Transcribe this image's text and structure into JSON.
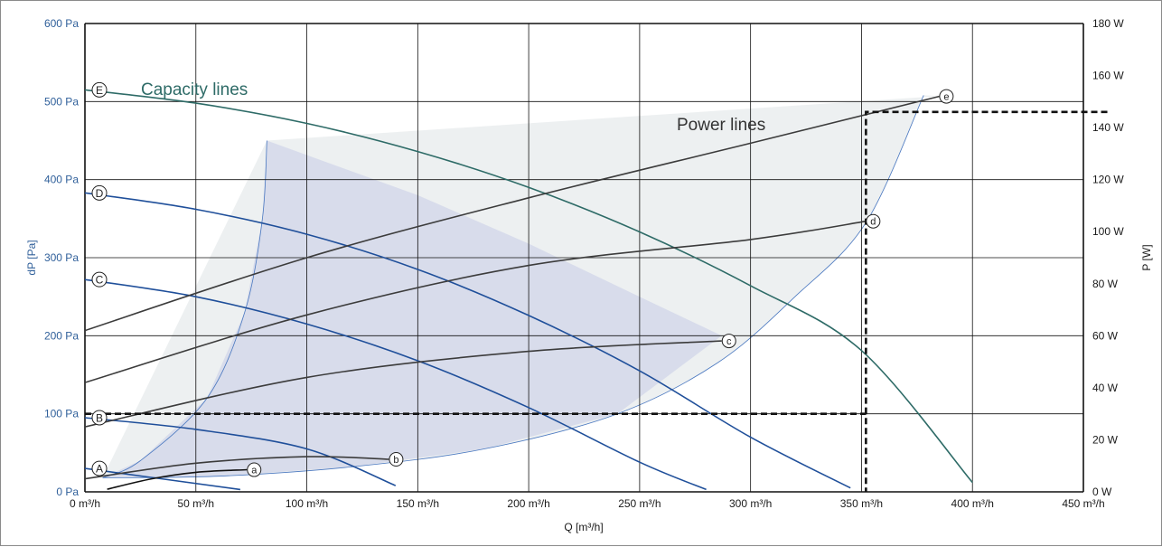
{
  "chart_data": {
    "type": "line",
    "title": "",
    "xlabel": "Q [m³/h]",
    "ylabel_left": "dP [Pa]",
    "ylabel_right": "P [W]",
    "xlim": [
      0,
      450
    ],
    "ylim_left": [
      0,
      600
    ],
    "ylim_right": [
      0,
      180
    ],
    "grid": true,
    "x_ticks": [
      "0 m³/h",
      "50 m³/h",
      "100 m³/h",
      "150 m³/h",
      "200 m³/h",
      "250 m³/h",
      "300 m³/h",
      "350 m³/h",
      "400 m³/h",
      "450 m³/h"
    ],
    "y_left_ticks": [
      "0 Pa",
      "100 Pa",
      "200 Pa",
      "300 Pa",
      "400 Pa",
      "500 Pa",
      "600 Pa"
    ],
    "y_right_ticks": [
      "0 W",
      "20 W",
      "40 W",
      "60 W",
      "80 W",
      "100 W",
      "120 W",
      "140 W",
      "160 W",
      "180 W"
    ],
    "annotations": {
      "capacity": "Capacity  lines",
      "power": "Power lines"
    },
    "capacity_lines": [
      {
        "name": "A",
        "points": [
          [
            0,
            30
          ],
          [
            70,
            3
          ]
        ]
      },
      {
        "name": "B",
        "points": [
          [
            0,
            95
          ],
          [
            50,
            80
          ],
          [
            100,
            55
          ],
          [
            140,
            8
          ]
        ]
      },
      {
        "name": "C",
        "points": [
          [
            0,
            272
          ],
          [
            50,
            250
          ],
          [
            100,
            215
          ],
          [
            150,
            168
          ],
          [
            200,
            108
          ],
          [
            250,
            38
          ],
          [
            280,
            3
          ]
        ]
      },
      {
        "name": "D",
        "points": [
          [
            0,
            383
          ],
          [
            50,
            362
          ],
          [
            100,
            330
          ],
          [
            150,
            285
          ],
          [
            200,
            226
          ],
          [
            250,
            155
          ],
          [
            300,
            70
          ],
          [
            345,
            5
          ]
        ]
      },
      {
        "name": "E",
        "points": [
          [
            0,
            515
          ],
          [
            50,
            498
          ],
          [
            100,
            472
          ],
          [
            150,
            436
          ],
          [
            200,
            390
          ],
          [
            250,
            333
          ],
          [
            300,
            264
          ],
          [
            350,
            181
          ],
          [
            400,
            12
          ]
        ]
      }
    ],
    "power_lines": [
      {
        "name": "a",
        "points": [
          [
            10,
            1
          ],
          [
            30,
            5
          ],
          [
            50,
            7.5
          ],
          [
            73,
            8.5
          ]
        ]
      },
      {
        "name": "b",
        "points": [
          [
            0,
            5
          ],
          [
            50,
            11
          ],
          [
            100,
            13.5
          ],
          [
            137,
            12.5
          ]
        ]
      },
      {
        "name": "c",
        "points": [
          [
            0,
            25
          ],
          [
            100,
            44
          ],
          [
            200,
            54
          ],
          [
            287,
            58
          ]
        ]
      },
      {
        "name": "d",
        "points": [
          [
            0,
            42
          ],
          [
            100,
            68
          ],
          [
            200,
            87
          ],
          [
            300,
            97
          ],
          [
            352,
            104
          ]
        ]
      },
      {
        "name": "e",
        "points": [
          [
            0,
            62
          ],
          [
            100,
            90
          ],
          [
            200,
            113
          ],
          [
            300,
            134
          ],
          [
            385,
            152
          ]
        ]
      }
    ],
    "markers": {
      "capacity": [
        {
          "label": "A",
          "x": 0,
          "y": 30
        },
        {
          "label": "B",
          "x": 0,
          "y": 95
        },
        {
          "label": "C",
          "x": 0,
          "y": 272
        },
        {
          "label": "D",
          "x": 0,
          "y": 383
        },
        {
          "label": "E",
          "x": 0,
          "y": 515
        }
      ],
      "power": [
        {
          "label": "a",
          "x": 73,
          "y_w": 8.5
        },
        {
          "label": "b",
          "x": 137,
          "y_w": 12.5
        },
        {
          "label": "c",
          "x": 287,
          "y_w": 58
        },
        {
          "label": "d",
          "x": 352,
          "y_w": 104
        },
        {
          "label": "e",
          "x": 385,
          "y_w": 152
        }
      ]
    },
    "operating_point": {
      "x": 352,
      "dp": 100,
      "power_w": 146
    },
    "colors": {
      "capacity_E": "#2e6b67",
      "capacity_other": "#1f4f9a",
      "power": "#3c3c3c",
      "left_axis": "#2f5f9a",
      "region_blue": "#c9cfe8",
      "region_grey": "#dfe3e5"
    }
  }
}
